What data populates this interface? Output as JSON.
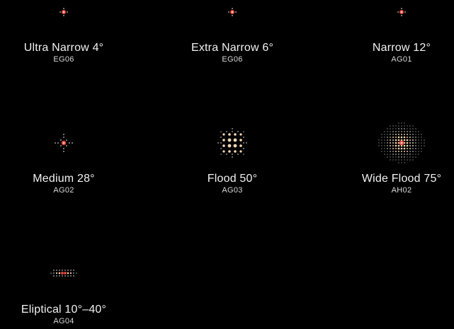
{
  "colors": {
    "background": "#000000",
    "dot_white": "#ffffff",
    "dot_peach": "#f6d7b6",
    "core_red": "#e8453a",
    "text": "#f2f2f2"
  },
  "beams": [
    {
      "name": "Ultra Narrow 4°",
      "code": "EG06",
      "icon": "spot-pattern-ultra-narrow-icon"
    },
    {
      "name": "Extra Narrow 6°",
      "code": "EG06",
      "icon": "spot-pattern-extra-narrow-icon"
    },
    {
      "name": "Narrow 12°",
      "code": "AG01",
      "icon": "spot-pattern-narrow-icon"
    },
    {
      "name": "Medium 28°",
      "code": "AG02",
      "icon": "spot-pattern-medium-icon"
    },
    {
      "name": "Flood 50°",
      "code": "AG03",
      "icon": "spot-pattern-flood-icon"
    },
    {
      "name": "Wide Flood 75°",
      "code": "AH02",
      "icon": "spot-pattern-wide-flood-icon"
    },
    {
      "name": "Eliptical 10°–40°",
      "code": "AG04",
      "icon": "spot-pattern-eliptical-icon"
    }
  ]
}
